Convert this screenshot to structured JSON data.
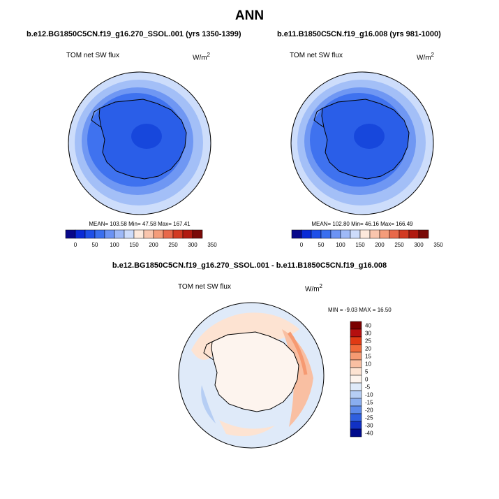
{
  "title": "ANN",
  "panels": [
    {
      "case": "b.e12.BG1850C5CN.f19_g16.270_SSOL.001 (yrs 1350-1399)",
      "variable": "TOM net SW flux",
      "units": "W/m",
      "units_sup": "2",
      "stats": "MEAN= 103.58  Min=  47.58  Max= 167.41",
      "colorbar": {
        "colors": [
          "#08088a",
          "#0a2bd6",
          "#1e4fe8",
          "#3a6fef",
          "#6b93f4",
          "#9eb9f7",
          "#cddcfb",
          "#fde9dc",
          "#f9c5ad",
          "#f49c7a",
          "#e8684a",
          "#d23a22",
          "#b01a10",
          "#7a0a08"
        ],
        "labels": [
          "0",
          "50",
          "100",
          "150",
          "200",
          "250",
          "300",
          "350"
        ]
      }
    },
    {
      "case": "b.e11.B1850C5CN.f19_g16.008 (yrs 981-1000)",
      "variable": "TOM net SW flux",
      "units": "W/m",
      "units_sup": "2",
      "stats": "MEAN= 102.80  Min=  46.16  Max= 166.49",
      "colorbar": {
        "colors": [
          "#08088a",
          "#0a2bd6",
          "#1e4fe8",
          "#3a6fef",
          "#6b93f4",
          "#9eb9f7",
          "#cddcfb",
          "#fde9dc",
          "#f9c5ad",
          "#f49c7a",
          "#e8684a",
          "#d23a22",
          "#b01a10",
          "#7a0a08"
        ],
        "labels": [
          "0",
          "50",
          "100",
          "150",
          "200",
          "250",
          "300",
          "350"
        ]
      }
    },
    {
      "case": "b.e12.BG1850C5CN.f19_g16.270_SSOL.001 - b.e11.B1850C5CN.f19_g16.008",
      "variable": "TOM net SW flux",
      "units": "W/m",
      "units_sup": "2",
      "stats": "MIN =  -9.03 MAX =  16.50",
      "colorbar": {
        "colors": [
          "#7a0000",
          "#b50f0f",
          "#e03a14",
          "#f06a3a",
          "#f69a72",
          "#f9bfa2",
          "#fde3d2",
          "#fdf4ee",
          "#dfeaf9",
          "#b6cef4",
          "#8aaeef",
          "#5d8aea",
          "#2f5fdf",
          "#1131c4",
          "#000a8c"
        ],
        "labels": [
          "40",
          "30",
          "25",
          "20",
          "15",
          "10",
          "5",
          "0",
          "-5",
          "-10",
          "-15",
          "-20",
          "-25",
          "-30",
          "-40"
        ]
      }
    }
  ]
}
